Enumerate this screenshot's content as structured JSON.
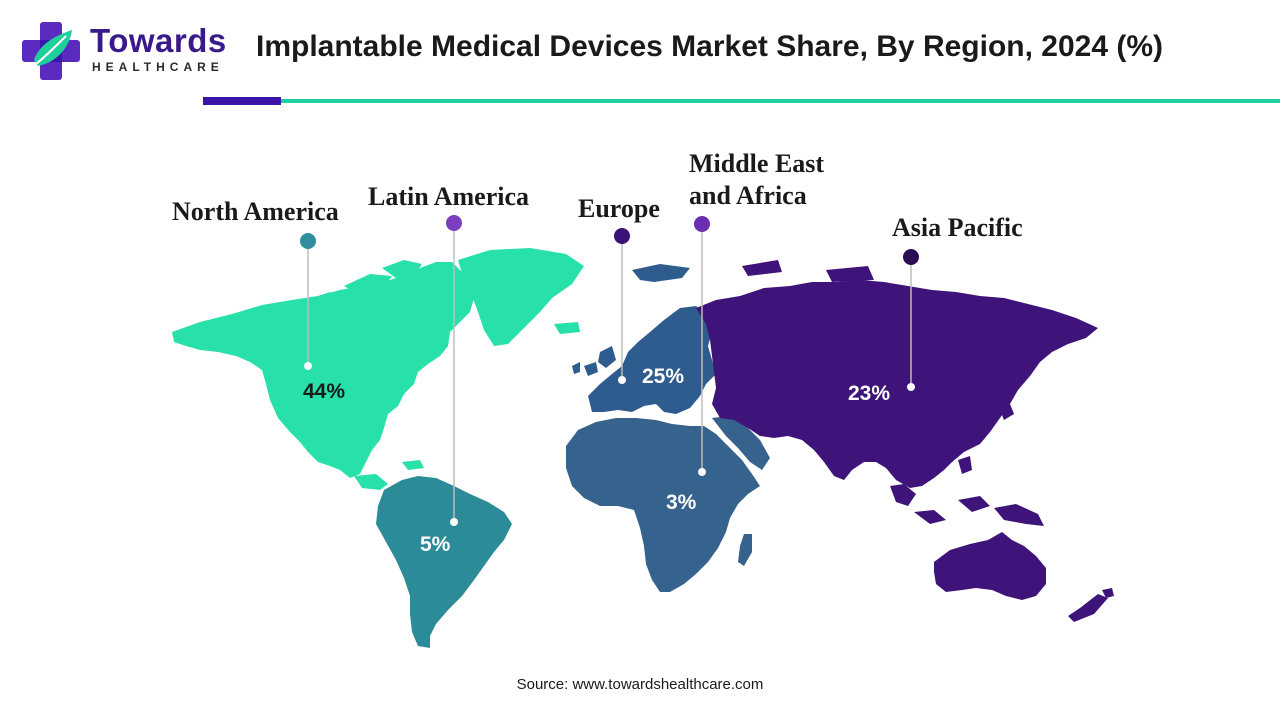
{
  "brand": {
    "name": "Towards",
    "tagline": "HEALTHCARE",
    "colors": {
      "purple": "#3b15a8",
      "teal": "#1fcf9c"
    }
  },
  "title": "Implantable Medical Devices Market Share, By Region, 2024 (%)",
  "chart_data": {
    "type": "map",
    "regions": [
      {
        "name": "North America",
        "value": 44,
        "label": "44%",
        "color": "#27e0aa",
        "dot_color": "#2f8f9e"
      },
      {
        "name": "Latin America",
        "value": 5,
        "label": "5%",
        "color": "#2c8b99",
        "dot_color": "#7b3fbf"
      },
      {
        "name": "Europe",
        "value": 25,
        "label": "25%",
        "color": "#2f5c8f",
        "dot_color": "#3b1278"
      },
      {
        "name": "Middle East and Africa",
        "value": 3,
        "label": "3%",
        "color": "#36628e",
        "dot_color": "#6a2fb0"
      },
      {
        "name": "Asia Pacific",
        "value": 23,
        "label": "23%",
        "color": "#3f147a",
        "dot_color": "#2a0c55"
      }
    ]
  },
  "labels": {
    "north_america": "North America",
    "latin_america": "Latin America",
    "europe": "Europe",
    "mea_line1": "Middle East",
    "mea_line2": "and Africa",
    "asia_pacific": "Asia Pacific"
  },
  "values": {
    "north_america": "44%",
    "latin_america": "5%",
    "europe": "25%",
    "mea": "3%",
    "asia_pacific": "23%"
  },
  "source": "Source: www.towardshealthcare.com"
}
